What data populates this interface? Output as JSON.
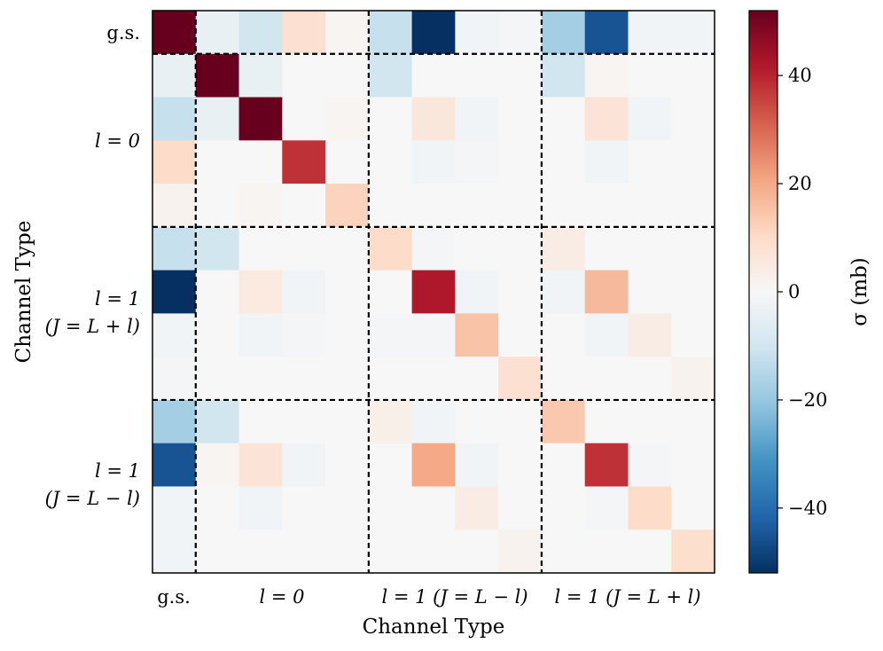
{
  "chart_data": {
    "type": "heatmap",
    "xlabel": "Channel Type",
    "ylabel": "Channel Type",
    "colorbar_label": "σ (mb)",
    "colorbar_ticks": [
      "40",
      "20",
      "0",
      "−20",
      "−40"
    ],
    "colorbar_tick_values": [
      40,
      20,
      0,
      -20,
      -40
    ],
    "vmin": -52,
    "vmax": 52,
    "colormap": "RdBu_r",
    "x_group_labels": [
      "g.s.",
      "l = 0",
      "l = 1 (J = L − l)",
      "l = 1 (J = L + l)"
    ],
    "y_group_labels": [
      "g.s.",
      "l = 0",
      "l = 1",
      "(J = L + l)",
      "l = 1",
      "(J = L − l)"
    ],
    "group_sizes": [
      1,
      4,
      4,
      4
    ],
    "grid_line_style": "dashed",
    "matrix": [
      [
        52,
        -4,
        -10,
        8,
        1,
        -12,
        -52,
        -2,
        -1,
        -18,
        -45,
        -2,
        -2
      ],
      [
        -4,
        52,
        -4,
        0,
        0,
        -10,
        0,
        0,
        0,
        -10,
        1,
        0,
        0
      ],
      [
        -12,
        -4,
        52,
        0,
        1,
        0,
        6,
        -2,
        0,
        0,
        7,
        -2,
        0
      ],
      [
        10,
        0,
        0,
        38,
        0,
        0,
        -2,
        -1,
        0,
        0,
        -2,
        0,
        0
      ],
      [
        2,
        0,
        1,
        0,
        12,
        0,
        0,
        0,
        0,
        0,
        0,
        0,
        0
      ],
      [
        -12,
        -10,
        0,
        0,
        0,
        10,
        -1,
        0,
        0,
        4,
        0,
        0,
        0
      ],
      [
        -52,
        0,
        5,
        -2,
        0,
        0,
        42,
        -2,
        0,
        -2,
        17,
        0,
        0
      ],
      [
        -2,
        0,
        -2,
        -1,
        0,
        -1,
        -1,
        15,
        0,
        0,
        -2,
        4,
        0
      ],
      [
        -1,
        0,
        0,
        0,
        0,
        0,
        0,
        0,
        8,
        0,
        0,
        0,
        2
      ],
      [
        -18,
        -10,
        0,
        0,
        0,
        3,
        -2,
        0,
        0,
        14,
        0,
        0,
        0
      ],
      [
        -45,
        1,
        7,
        -2,
        0,
        0,
        20,
        -2,
        0,
        0,
        38,
        -1,
        0
      ],
      [
        -2,
        0,
        -2,
        0,
        0,
        0,
        0,
        4,
        0,
        0,
        -1,
        10,
        0
      ],
      [
        -2,
        0,
        0,
        0,
        0,
        0,
        0,
        0,
        2,
        0,
        0,
        0,
        9
      ]
    ]
  }
}
